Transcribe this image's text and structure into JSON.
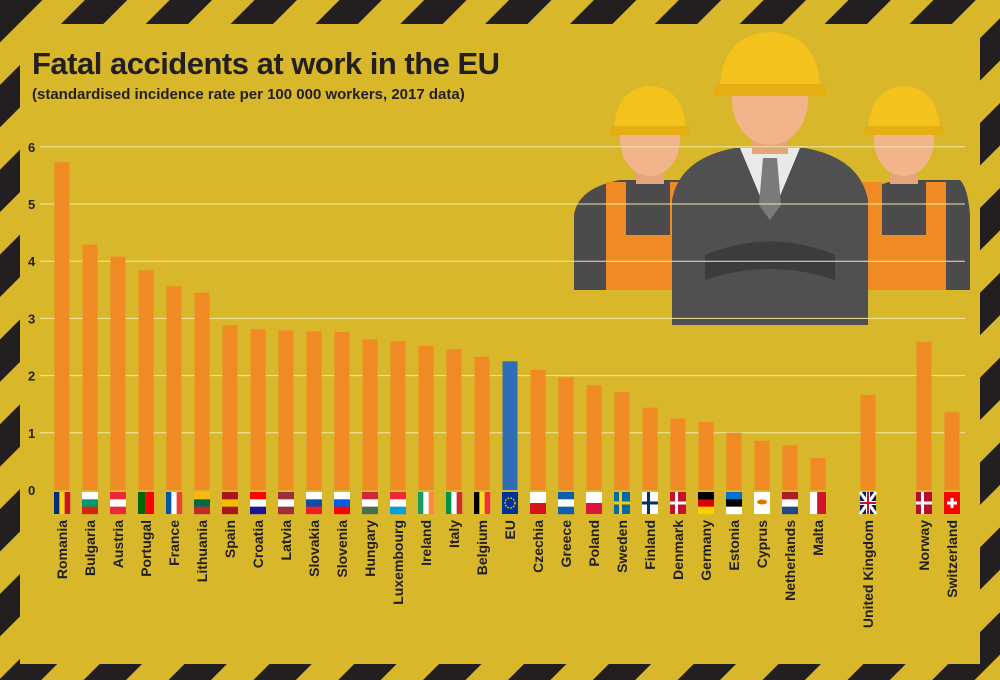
{
  "title": "Fatal accidents at work in the EU",
  "subtitle": "(standardised incidence rate per 100 000 workers, 2017 data)",
  "colors": {
    "background": "#d9b72b",
    "stripe_dark": "#231f20",
    "stripe_light": "#d9b72b",
    "bar": "#f08a24",
    "eu_bar": "#2f6db5",
    "gridline": "#f3e7a0",
    "text": "#231f20"
  },
  "illustration": {
    "name": "construction-workers-illustration",
    "description_icon": "three-workers-hardhats-icon"
  },
  "chart_data": {
    "type": "bar",
    "title": "Fatal accidents at work in the EU",
    "subtitle": "(standardised incidence rate per 100 000 workers, 2017 data)",
    "xlabel": "",
    "ylabel": "",
    "ylim": [
      0,
      6
    ],
    "yticks": [
      0,
      1,
      2,
      3,
      4,
      5,
      6
    ],
    "grid": true,
    "legend": "none",
    "categories": [
      "Romania",
      "Bulgaria",
      "Austria",
      "Portugal",
      "France",
      "Lithuania",
      "Spain",
      "Croatia",
      "Latvia",
      "Slovakia",
      "Slovenia",
      "Hungary",
      "Luxembourg",
      "Ireland",
      "Italy",
      "Belgium",
      "EU",
      "Czechia",
      "Greece",
      "Poland",
      "Sweden",
      "Finland",
      "Denmark",
      "Germany",
      "Estonia",
      "Cyprus",
      "Netherlands",
      "Malta",
      "United Kingdom",
      "Norway",
      "Switzerland"
    ],
    "values": [
      5.73,
      4.29,
      4.08,
      3.84,
      3.56,
      3.45,
      2.88,
      2.81,
      2.79,
      2.77,
      2.76,
      2.63,
      2.6,
      2.52,
      2.46,
      2.33,
      2.25,
      2.1,
      1.97,
      1.83,
      1.71,
      1.44,
      1.25,
      1.19,
      1.0,
      0.86,
      0.78,
      0.56,
      1.66,
      2.59,
      1.36
    ],
    "highlight": "EU",
    "flags": [
      "flag-romania-icon",
      "flag-bulgaria-icon",
      "flag-austria-icon",
      "flag-portugal-icon",
      "flag-france-icon",
      "flag-lithuania-icon",
      "flag-spain-icon",
      "flag-croatia-icon",
      "flag-latvia-icon",
      "flag-slovakia-icon",
      "flag-slovenia-icon",
      "flag-hungary-icon",
      "flag-luxembourg-icon",
      "flag-ireland-icon",
      "flag-italy-icon",
      "flag-belgium-icon",
      "flag-eu-icon",
      "flag-czechia-icon",
      "flag-greece-icon",
      "flag-poland-icon",
      "flag-sweden-icon",
      "flag-finland-icon",
      "flag-denmark-icon",
      "flag-germany-icon",
      "flag-estonia-icon",
      "flag-cyprus-icon",
      "flag-netherlands-icon",
      "flag-malta-icon",
      "flag-united-kingdom-icon",
      "flag-norway-icon",
      "flag-switzerland-icon"
    ]
  }
}
